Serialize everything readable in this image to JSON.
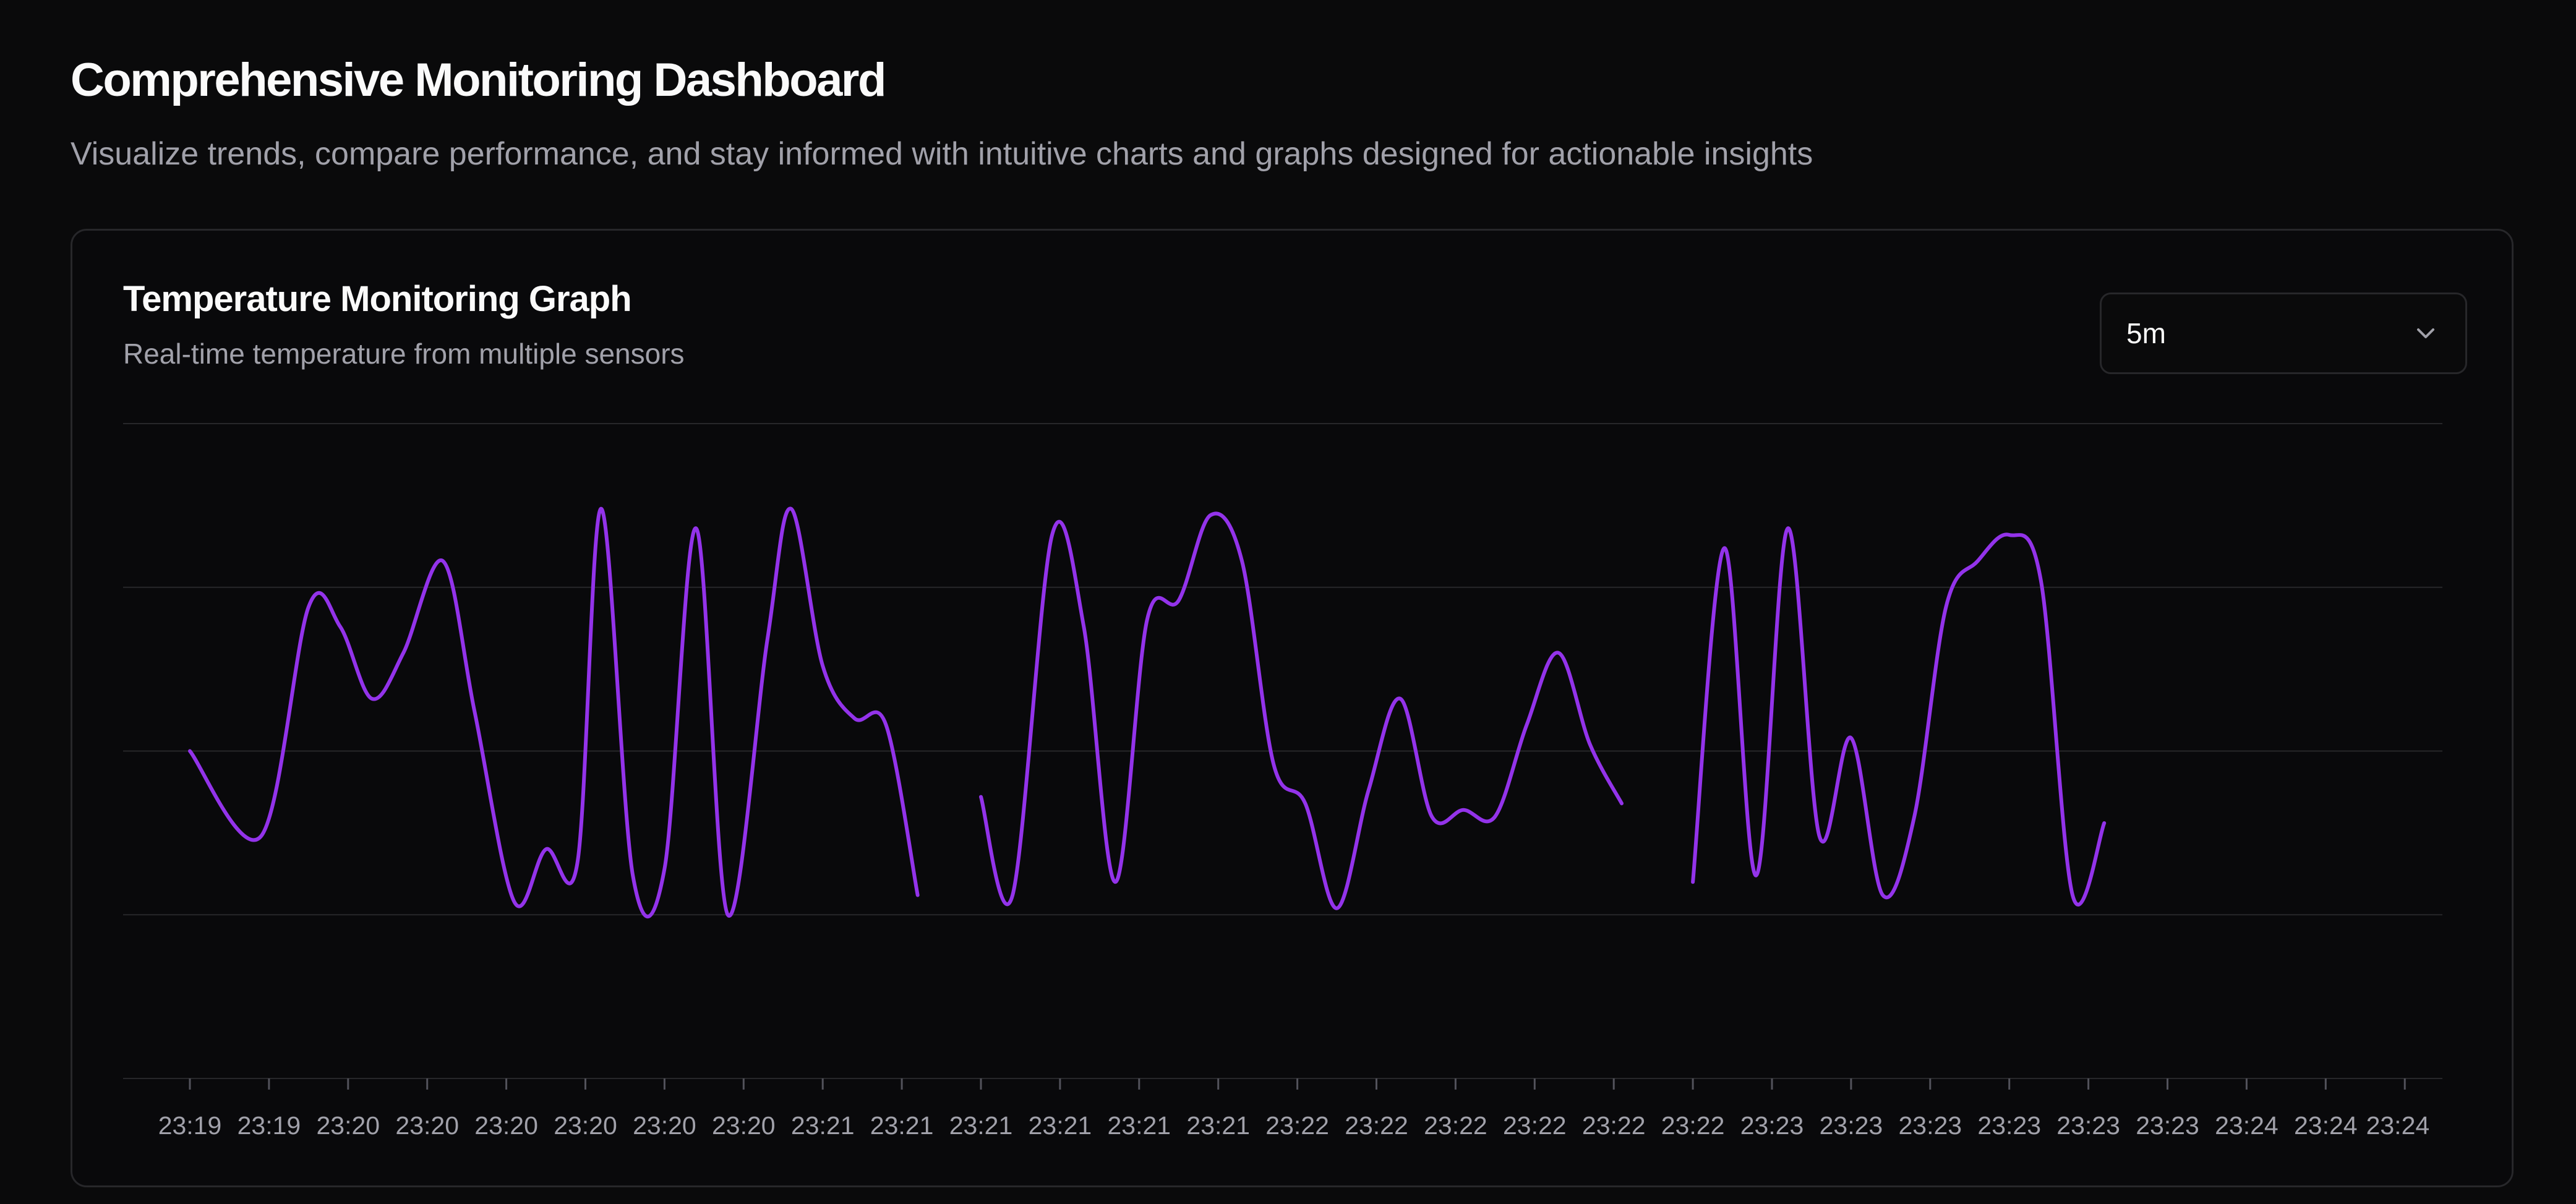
{
  "header": {
    "title": "Comprehensive Monitoring Dashboard",
    "subtitle": "Visualize trends, compare performance, and stay informed with intuitive charts and graphs designed for actionable insights"
  },
  "card": {
    "title": "Temperature Monitoring Graph",
    "subtitle": "Real-time temperature from multiple sensors",
    "range_select": {
      "value": "5m",
      "icon": "chevron-down-icon"
    }
  },
  "colors": {
    "line": "#9333ea",
    "grid": "#27272a",
    "muted_text": "#a1a1aa"
  },
  "chart_data": {
    "type": "line",
    "grid": true,
    "legend": "none",
    "ylim": [
      0,
      100
    ],
    "x_tick_labels": [
      "23:19",
      "23:19",
      "23:20",
      "23:20",
      "23:20",
      "23:20",
      "23:20",
      "23:20",
      "23:21",
      "23:21",
      "23:21",
      "23:21",
      "23:21",
      "23:21",
      "23:22",
      "23:22",
      "23:22",
      "23:22",
      "23:22",
      "23:22",
      "23:23",
      "23:23",
      "23:23",
      "23:23",
      "23:23",
      "23:23",
      "23:24",
      "23:24",
      "23:24"
    ],
    "series": [
      {
        "name": "",
        "color": "#9333ea",
        "segments": [
          [
            [
              0,
              50
            ],
            [
              0.9,
              37
            ],
            [
              1.5,
              72
            ],
            [
              1.9,
              69
            ],
            [
              2.3,
              58
            ],
            [
              2.7,
              65
            ],
            [
              3.2,
              79
            ],
            [
              3.6,
              56
            ],
            [
              4.1,
              27
            ],
            [
              4.5,
              35
            ],
            [
              4.9,
              33
            ],
            [
              5.2,
              87
            ],
            [
              5.6,
              31
            ],
            [
              6.0,
              32
            ],
            [
              6.4,
              84
            ],
            [
              6.8,
              25
            ],
            [
              7.3,
              67
            ],
            [
              7.6,
              87
            ],
            [
              8.0,
              63
            ],
            [
              8.4,
              55
            ],
            [
              8.8,
              54
            ],
            [
              9.2,
              28
            ]
          ],
          [
            [
              10.0,
              43
            ],
            [
              10.4,
              28
            ],
            [
              10.9,
              83
            ],
            [
              11.3,
              69
            ],
            [
              11.7,
              30
            ],
            [
              12.1,
              70
            ],
            [
              12.5,
              73
            ],
            [
              12.9,
              86
            ],
            [
              13.3,
              79
            ],
            [
              13.7,
              48
            ],
            [
              14.1,
              42
            ],
            [
              14.5,
              26
            ],
            [
              14.9,
              44
            ],
            [
              15.3,
              58
            ],
            [
              15.7,
              40
            ],
            [
              16.1,
              41
            ],
            [
              16.5,
              40
            ],
            [
              16.9,
              54
            ],
            [
              17.3,
              65
            ],
            [
              17.7,
              51
            ],
            [
              18.1,
              42
            ]
          ],
          [
            [
              19.0,
              30
            ],
            [
              19.4,
              81
            ],
            [
              19.8,
              31
            ],
            [
              20.2,
              84
            ],
            [
              20.6,
              37
            ],
            [
              21.0,
              52
            ],
            [
              21.4,
              28
            ],
            [
              21.8,
              40
            ],
            [
              22.2,
              72
            ],
            [
              22.6,
              79
            ],
            [
              23.0,
              83
            ],
            [
              23.4,
              76
            ],
            [
              23.8,
              28
            ],
            [
              24.2,
              39
            ]
          ]
        ]
      }
    ]
  }
}
